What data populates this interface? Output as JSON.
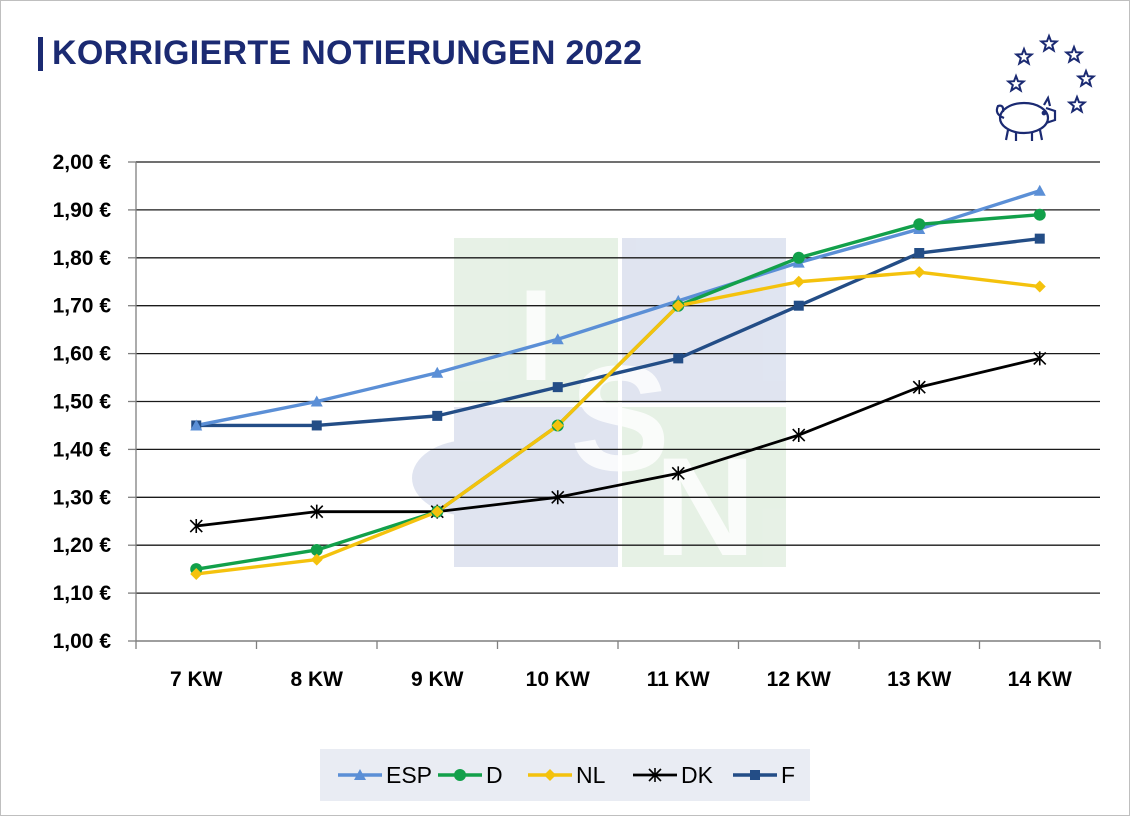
{
  "title": "KORRIGIERTE NOTIERUNGEN 2022",
  "logo": {
    "icon": "pig-with-stars-icon",
    "watermark": "ISN"
  },
  "colors": {
    "ESP": "#5b8fd6",
    "D": "#12a04a",
    "NL": "#f4c20d",
    "DK": "#000000",
    "F": "#234d86",
    "title": "#1b2a72"
  },
  "chart_data": {
    "type": "line",
    "title": "KORRIGIERTE NOTIERUNGEN 2022",
    "xlabel": "",
    "ylabel": "",
    "categories": [
      "7 KW",
      "8 KW",
      "9 KW",
      "10 KW",
      "11 KW",
      "12 KW",
      "13 KW",
      "14 KW"
    ],
    "ylim": [
      1.0,
      2.0
    ],
    "yticks": [
      "1,00 €",
      "1,10 €",
      "1,20 €",
      "1,30 €",
      "1,40 €",
      "1,50 €",
      "1,60 €",
      "1,70 €",
      "1,80 €",
      "1,90 €",
      "2,00 €"
    ],
    "grid": "horizontal",
    "legend_position": "bottom",
    "series": [
      {
        "name": "ESP",
        "marker": "triangle",
        "values": [
          1.45,
          1.5,
          1.56,
          1.63,
          1.71,
          1.79,
          1.86,
          1.94
        ]
      },
      {
        "name": "D",
        "marker": "circle",
        "values": [
          1.15,
          1.19,
          1.27,
          1.45,
          1.7,
          1.8,
          1.87,
          1.89
        ]
      },
      {
        "name": "NL",
        "marker": "diamond",
        "values": [
          1.14,
          1.17,
          1.27,
          1.45,
          1.7,
          1.75,
          1.77,
          1.74
        ]
      },
      {
        "name": "DK",
        "marker": "star",
        "values": [
          1.24,
          1.27,
          1.27,
          1.3,
          1.35,
          1.43,
          1.53,
          1.59
        ]
      },
      {
        "name": "F",
        "marker": "square",
        "values": [
          1.45,
          1.45,
          1.47,
          1.53,
          1.59,
          1.7,
          1.81,
          1.84
        ]
      }
    ]
  }
}
